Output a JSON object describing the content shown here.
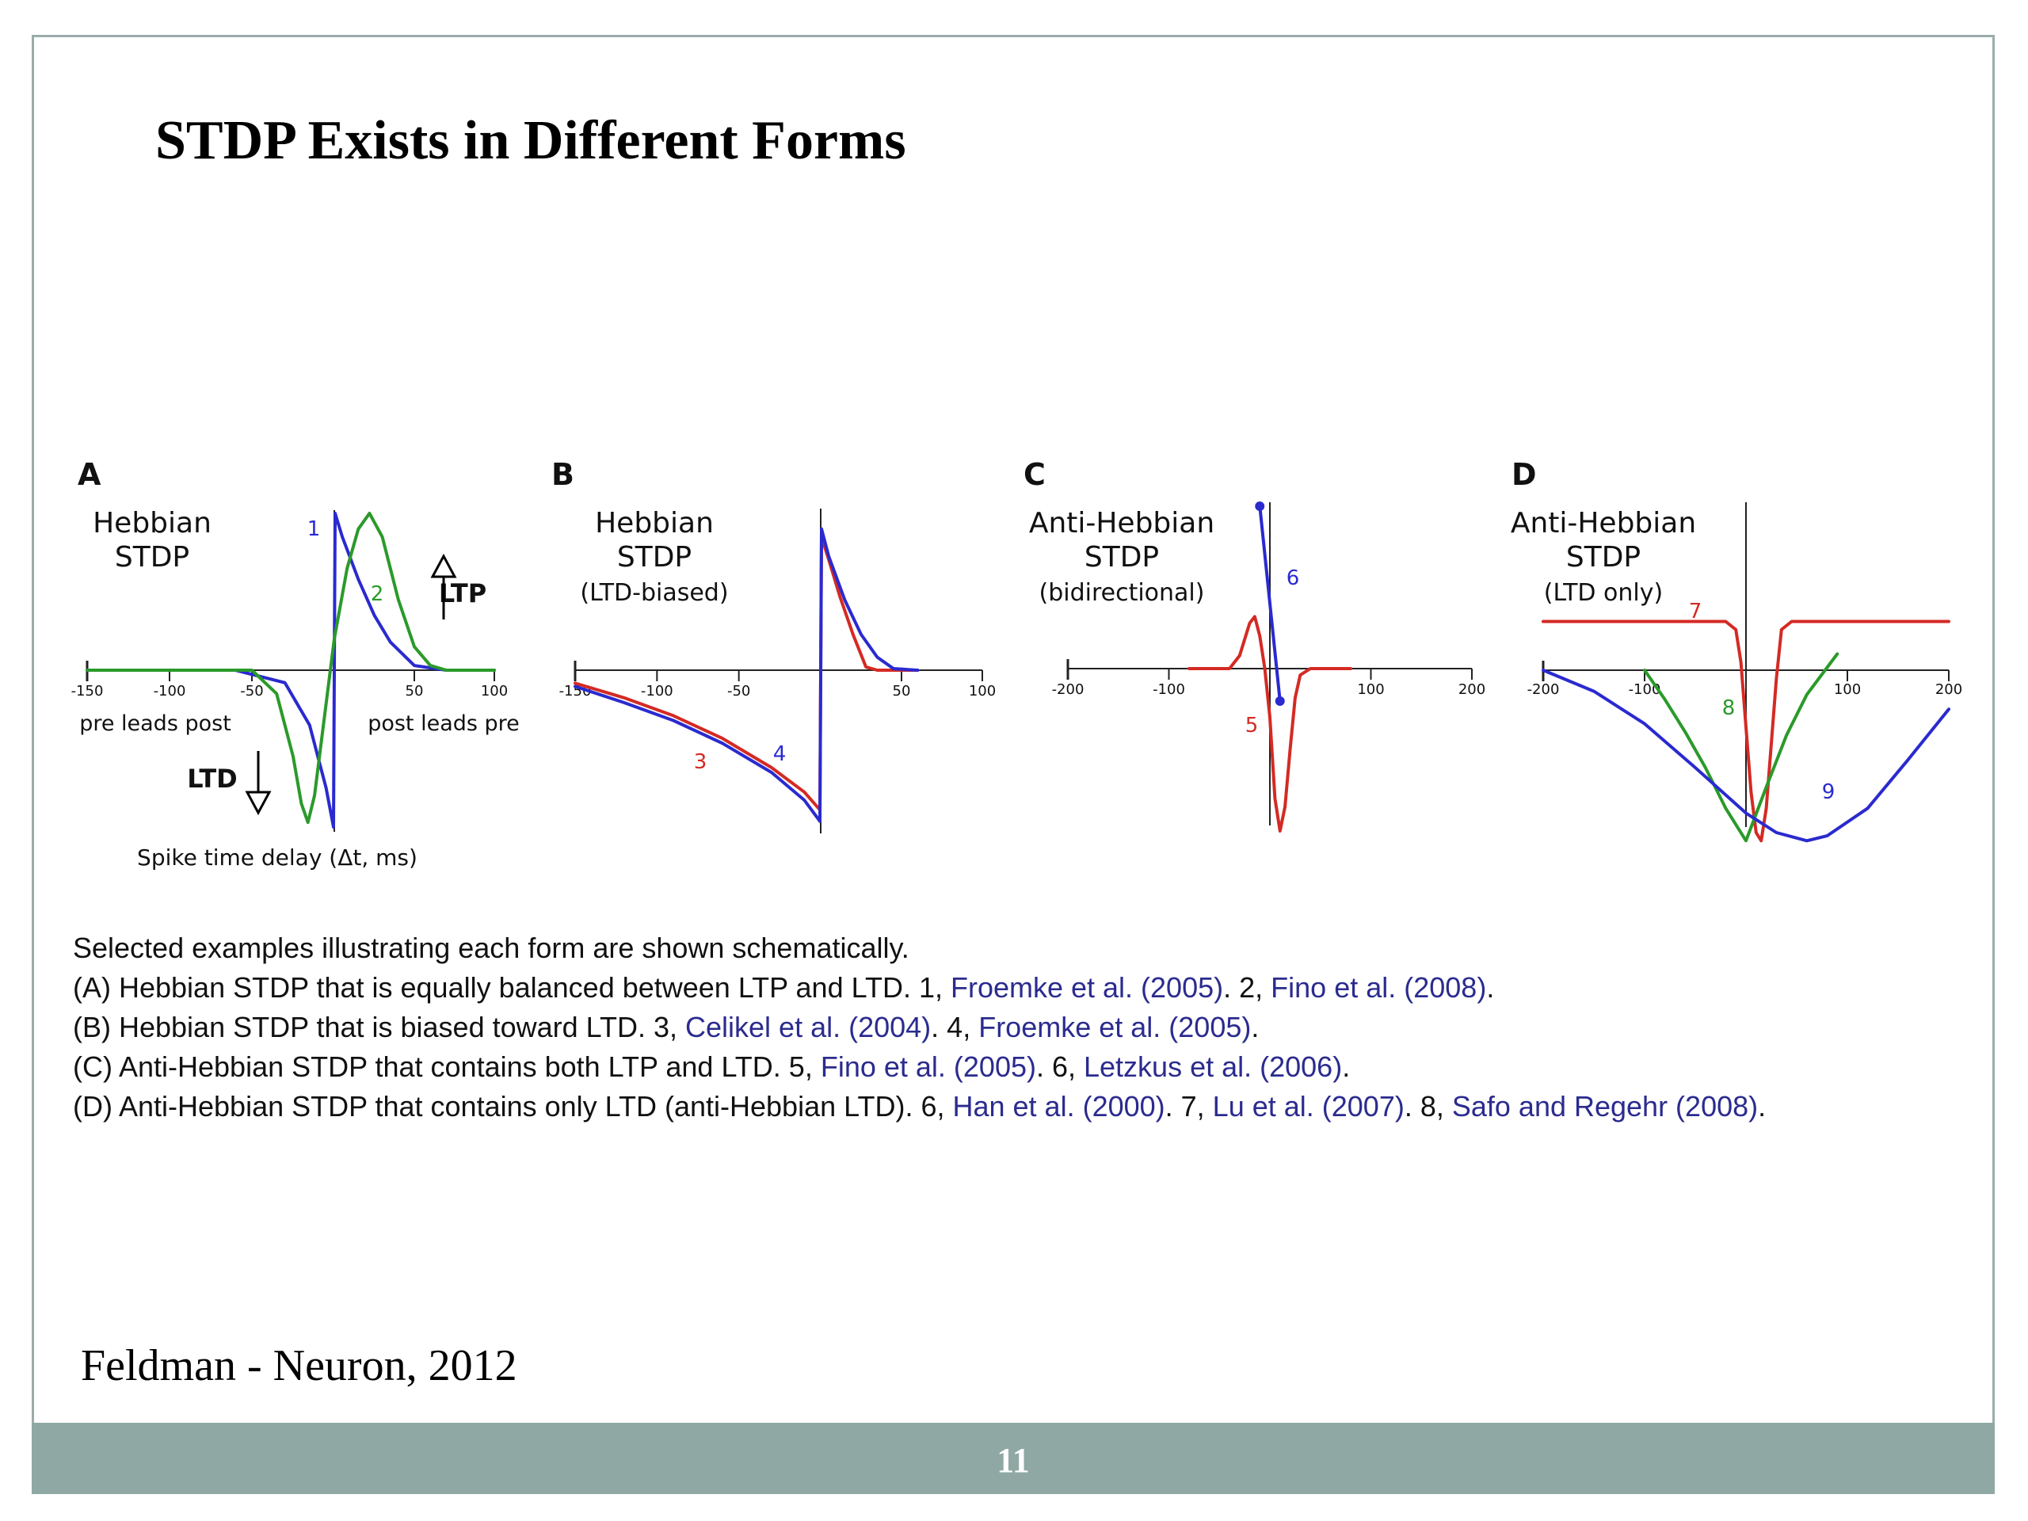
{
  "slide": {
    "title": "STDP Exists in Different Forms",
    "source": "Feldman - Neuron, 2012",
    "page_number": "11"
  },
  "colors": {
    "red": "#d42a24",
    "blue": "#2a2ad0",
    "green": "#2a9a2a",
    "axis": "#222222",
    "footer": "#8fa8a4",
    "ref": "#2b2b8f"
  },
  "caption": {
    "intro": "Selected examples illustrating each form are shown schematically.",
    "lines": [
      [
        {
          "t": "(A) Hebbian STDP that is equally balanced between LTP and LTD. 1, "
        },
        {
          "t": "Froemke et al. (2005)",
          "ref": true
        },
        {
          "t": ". 2, "
        },
        {
          "t": "Fino et al. (2008)",
          "ref": true
        },
        {
          "t": "."
        }
      ],
      [
        {
          "t": "(B) Hebbian STDP that is biased toward LTD. 3, "
        },
        {
          "t": "Celikel et al. (2004)",
          "ref": true
        },
        {
          "t": ". 4, "
        },
        {
          "t": "Froemke et al. (2005)",
          "ref": true
        },
        {
          "t": "."
        }
      ],
      [
        {
          "t": "(C) Anti-Hebbian STDP that contains both LTP and LTD. 5, "
        },
        {
          "t": "Fino et al. (2005)",
          "ref": true
        },
        {
          "t": ". 6, "
        },
        {
          "t": "Letzkus et al. (2006)",
          "ref": true
        },
        {
          "t": "."
        }
      ],
      [
        {
          "t": "(D) Anti-Hebbian STDP that contains only LTD (anti-Hebbian LTD). 6, "
        },
        {
          "t": "Han et al. (2000)",
          "ref": true
        },
        {
          "t": ". 7, "
        },
        {
          "t": "Lu et al. (2007)",
          "ref": true
        },
        {
          "t": ". 8, "
        },
        {
          "t": "Safo and Regehr (2008)",
          "ref": true
        },
        {
          "t": "."
        }
      ]
    ]
  },
  "chart_data": [
    {
      "panel": "A",
      "type": "line",
      "title_lines": [
        "Hebbian",
        "STDP"
      ],
      "xlim": [
        -150,
        100
      ],
      "xticks": [
        "-150",
        "-100",
        "-50",
        "50",
        "100"
      ],
      "xlabel_left": "pre leads post",
      "xlabel_right": "post leads pre",
      "xlabel": "Spike time delay (Δt, ms)",
      "ltp_label": "LTP",
      "ltd_label": "LTD",
      "series": [
        {
          "name": "1",
          "color": "blue",
          "x": [
            -150,
            -60,
            -30,
            -15,
            -5,
            -0.5,
            0.5,
            5,
            15,
            25,
            35,
            50,
            70,
            100
          ],
          "y": [
            0,
            0,
            -0.08,
            -0.35,
            -0.75,
            -1.0,
            1.0,
            0.85,
            0.58,
            0.35,
            0.18,
            0.03,
            0,
            0
          ]
        },
        {
          "name": "2",
          "color": "green",
          "x": [
            -150,
            -50,
            -35,
            -25,
            -20,
            -16,
            -12,
            -6,
            0,
            8,
            15,
            22,
            30,
            40,
            50,
            60,
            70,
            100
          ],
          "y": [
            0,
            0,
            -0.15,
            -0.55,
            -0.85,
            -0.97,
            -0.8,
            -0.3,
            0.2,
            0.65,
            0.9,
            1.0,
            0.85,
            0.45,
            0.15,
            0.03,
            0,
            0
          ]
        }
      ]
    },
    {
      "panel": "B",
      "type": "line",
      "title_lines": [
        "Hebbian",
        "STDP",
        "(LTD-biased)"
      ],
      "xlim": [
        -150,
        100
      ],
      "xticks": [
        "-150",
        "-100",
        "-50",
        "50",
        "100"
      ],
      "series": [
        {
          "name": "3",
          "color": "red",
          "x": [
            -150,
            -120,
            -90,
            -60,
            -30,
            -10,
            -0.5,
            0.5,
            5,
            12,
            20,
            28,
            35,
            60
          ],
          "y": [
            -0.08,
            -0.17,
            -0.28,
            -0.42,
            -0.6,
            -0.75,
            -0.86,
            0.82,
            0.68,
            0.45,
            0.22,
            0.02,
            0,
            0
          ]
        },
        {
          "name": "4",
          "color": "blue",
          "x": [
            -150,
            -120,
            -90,
            -60,
            -30,
            -10,
            -0.5,
            0.5,
            5,
            15,
            25,
            35,
            45,
            60
          ],
          "y": [
            -0.1,
            -0.2,
            -0.31,
            -0.45,
            -0.63,
            -0.8,
            -0.93,
            0.87,
            0.7,
            0.43,
            0.22,
            0.08,
            0.01,
            0
          ]
        }
      ]
    },
    {
      "panel": "C",
      "type": "line",
      "title_lines": [
        "Anti-Hebbian",
        "STDP",
        "(bidirectional)"
      ],
      "xlim": [
        -200,
        200
      ],
      "xticks": [
        "-200",
        "-100",
        "100",
        "200"
      ],
      "series": [
        {
          "name": "5",
          "color": "red",
          "x": [
            -80,
            -40,
            -30,
            -20,
            -15,
            -10,
            -5,
            0,
            5,
            10,
            15,
            20,
            25,
            30,
            40,
            50,
            80
          ],
          "y": [
            0,
            0,
            0.08,
            0.28,
            0.32,
            0.2,
            0,
            -0.3,
            -0.8,
            -1.0,
            -0.85,
            -0.5,
            -0.18,
            -0.04,
            0,
            0,
            0
          ]
        },
        {
          "name": "6",
          "color": "blue",
          "x": [
            -10,
            10
          ],
          "y": [
            1.0,
            -0.2
          ]
        }
      ]
    },
    {
      "panel": "D",
      "type": "line",
      "title_lines": [
        "Anti-Hebbian",
        "STDP",
        "(LTD only)"
      ],
      "xlim": [
        -200,
        200
      ],
      "xticks": [
        "-200",
        "-100",
        "100",
        "200"
      ],
      "series": [
        {
          "name": "7",
          "color": "red",
          "x": [
            -200,
            -20,
            -10,
            -5,
            0,
            5,
            10,
            15,
            20,
            25,
            30,
            35,
            45,
            200
          ],
          "y": [
            0.3,
            0.3,
            0.25,
            0.05,
            -0.35,
            -0.75,
            -1.0,
            -1.05,
            -0.85,
            -0.45,
            -0.05,
            0.25,
            0.3,
            0.3
          ]
        },
        {
          "name": "8",
          "color": "green",
          "x": [
            -100,
            -80,
            -60,
            -40,
            -20,
            0,
            20,
            40,
            60,
            90
          ],
          "y": [
            0,
            -0.18,
            -0.38,
            -0.6,
            -0.85,
            -1.05,
            -0.72,
            -0.4,
            -0.15,
            0.1
          ]
        },
        {
          "name": "9",
          "color": "blue",
          "x": [
            -200,
            -150,
            -100,
            -50,
            0,
            30,
            60,
            80,
            120,
            160,
            200
          ],
          "y": [
            0,
            -0.13,
            -0.33,
            -0.6,
            -0.88,
            -1.0,
            -1.05,
            -1.02,
            -0.85,
            -0.55,
            -0.24
          ]
        }
      ]
    }
  ]
}
